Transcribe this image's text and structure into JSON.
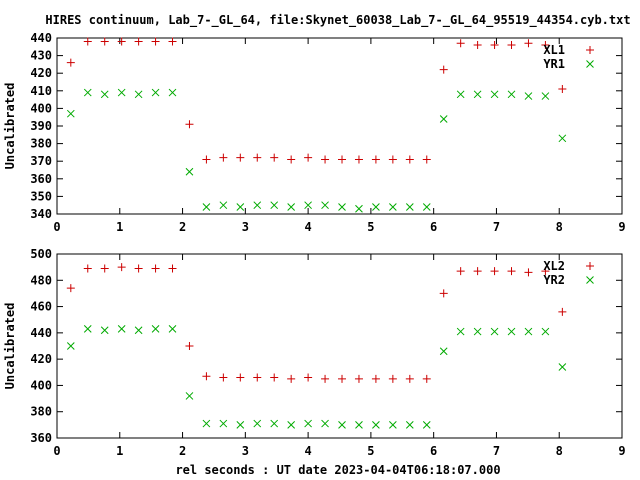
{
  "title": "HIRES continuum, Lab_7-_GL_64, file:Skynet_60038_Lab_7-_GL_64_95519_44354.cyb.txt",
  "xlabel": "rel seconds : UT date 2023-04-04T06:18:07.000",
  "colors": {
    "series_a": "#cc0000",
    "series_b": "#00aa00"
  },
  "chart_data": [
    {
      "type": "scatter",
      "ylabel": "Uncalibrated",
      "xlim": [
        0,
        9
      ],
      "ylim": [
        340,
        440
      ],
      "xticks": [
        0,
        1,
        2,
        3,
        4,
        5,
        6,
        7,
        8,
        9
      ],
      "yticks": [
        340,
        350,
        360,
        370,
        380,
        390,
        400,
        410,
        420,
        430,
        440
      ],
      "legend_position": "top-right",
      "series": [
        {
          "name": "XL1",
          "marker": "plus",
          "x": [
            0.22,
            0.49,
            0.76,
            1.03,
            1.3,
            1.57,
            1.84,
            2.11,
            2.38,
            2.65,
            2.92,
            3.19,
            3.46,
            3.73,
            4.0,
            4.27,
            4.54,
            4.81,
            5.08,
            5.35,
            5.62,
            5.89,
            6.16,
            6.43,
            6.7,
            6.97,
            7.24,
            7.51,
            7.78,
            8.05
          ],
          "y": [
            426,
            438,
            438,
            438,
            438,
            438,
            438,
            391,
            371,
            372,
            372,
            372,
            372,
            371,
            372,
            371,
            371,
            371,
            371,
            371,
            371,
            371,
            422,
            437,
            436,
            436,
            436,
            437,
            436,
            411
          ]
        },
        {
          "name": "YR1",
          "marker": "cross",
          "x": [
            0.22,
            0.49,
            0.76,
            1.03,
            1.3,
            1.57,
            1.84,
            2.11,
            2.38,
            2.65,
            2.92,
            3.19,
            3.46,
            3.73,
            4.0,
            4.27,
            4.54,
            4.81,
            5.08,
            5.35,
            5.62,
            5.89,
            6.16,
            6.43,
            6.7,
            6.97,
            7.24,
            7.51,
            7.78,
            8.05
          ],
          "y": [
            397,
            409,
            408,
            409,
            408,
            409,
            409,
            364,
            344,
            345,
            344,
            345,
            345,
            344,
            345,
            345,
            344,
            343,
            344,
            344,
            344,
            344,
            394,
            408,
            408,
            408,
            408,
            407,
            407,
            383
          ]
        }
      ]
    },
    {
      "type": "scatter",
      "ylabel": "Uncalibrated",
      "xlim": [
        0,
        9
      ],
      "ylim": [
        360,
        500
      ],
      "xticks": [
        0,
        1,
        2,
        3,
        4,
        5,
        6,
        7,
        8,
        9
      ],
      "yticks": [
        360,
        380,
        400,
        420,
        440,
        460,
        480,
        500
      ],
      "legend_position": "top-right",
      "series": [
        {
          "name": "XL2",
          "marker": "plus",
          "x": [
            0.22,
            0.49,
            0.76,
            1.03,
            1.3,
            1.57,
            1.84,
            2.11,
            2.38,
            2.65,
            2.92,
            3.19,
            3.46,
            3.73,
            4.0,
            4.27,
            4.54,
            4.81,
            5.08,
            5.35,
            5.62,
            5.89,
            6.16,
            6.43,
            6.7,
            6.97,
            7.24,
            7.51,
            7.78,
            8.05
          ],
          "y": [
            474,
            489,
            489,
            490,
            489,
            489,
            489,
            430,
            407,
            406,
            406,
            406,
            406,
            405,
            406,
            405,
            405,
            405,
            405,
            405,
            405,
            405,
            470,
            487,
            487,
            487,
            487,
            486,
            487,
            456
          ]
        },
        {
          "name": "YR2",
          "marker": "cross",
          "x": [
            0.22,
            0.49,
            0.76,
            1.03,
            1.3,
            1.57,
            1.84,
            2.11,
            2.38,
            2.65,
            2.92,
            3.19,
            3.46,
            3.73,
            4.0,
            4.27,
            4.54,
            4.81,
            5.08,
            5.35,
            5.62,
            5.89,
            6.16,
            6.43,
            6.7,
            6.97,
            7.24,
            7.51,
            7.78,
            8.05
          ],
          "y": [
            430,
            443,
            442,
            443,
            442,
            443,
            443,
            392,
            371,
            371,
            370,
            371,
            371,
            370,
            371,
            371,
            370,
            370,
            370,
            370,
            370,
            370,
            426,
            441,
            441,
            441,
            441,
            441,
            441,
            414
          ]
        }
      ]
    }
  ]
}
